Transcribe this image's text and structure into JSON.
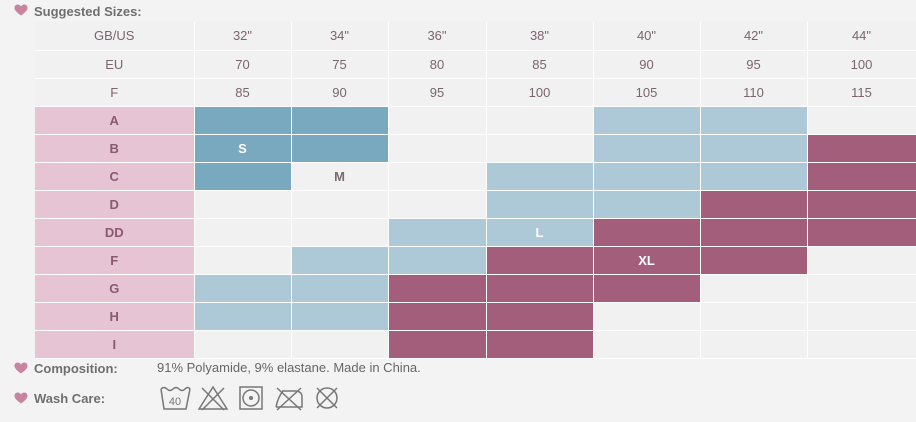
{
  "suggested_label": "Suggested Sizes:",
  "composition_label": "Composition:",
  "composition_text": "91% Polyamide, 9% elastane. Made in China.",
  "wash_label": "Wash Care:",
  "colors": {
    "small": "#79a9be",
    "large": "#adc8d6",
    "xlarge": "#a35e7b",
    "cup": "#e6c4d4",
    "heart": "#c8849f"
  },
  "header_rows": [
    {
      "label": "GB/US",
      "values": [
        "32\"",
        "34\"",
        "36\"",
        "38\"",
        "40\"",
        "42\"",
        "44\""
      ]
    },
    {
      "label": "EU",
      "values": [
        "70",
        "75",
        "80",
        "85",
        "90",
        "95",
        "100"
      ]
    },
    {
      "label": "F",
      "values": [
        "85",
        "90",
        "95",
        "100",
        "105",
        "110",
        "115"
      ]
    }
  ],
  "cup_rows": [
    {
      "cup": "A",
      "cells": [
        {
          "size": "small",
          "text": ""
        },
        {
          "size": "small",
          "text": ""
        },
        {
          "size": "",
          "text": ""
        },
        {
          "size": "",
          "text": ""
        },
        {
          "size": "large",
          "text": ""
        },
        {
          "size": "large",
          "text": ""
        },
        {
          "size": "",
          "text": ""
        }
      ]
    },
    {
      "cup": "B",
      "cells": [
        {
          "size": "small",
          "text": "S"
        },
        {
          "size": "small",
          "text": ""
        },
        {
          "size": "",
          "text": ""
        },
        {
          "size": "",
          "text": ""
        },
        {
          "size": "large",
          "text": ""
        },
        {
          "size": "large",
          "text": ""
        },
        {
          "size": "xlarge",
          "text": ""
        }
      ]
    },
    {
      "cup": "C",
      "cells": [
        {
          "size": "small",
          "text": ""
        },
        {
          "size": "",
          "text": "M"
        },
        {
          "size": "",
          "text": ""
        },
        {
          "size": "large",
          "text": ""
        },
        {
          "size": "large",
          "text": ""
        },
        {
          "size": "large",
          "text": ""
        },
        {
          "size": "xlarge",
          "text": ""
        }
      ]
    },
    {
      "cup": "D",
      "cells": [
        {
          "size": "",
          "text": ""
        },
        {
          "size": "",
          "text": ""
        },
        {
          "size": "",
          "text": ""
        },
        {
          "size": "large",
          "text": ""
        },
        {
          "size": "large",
          "text": ""
        },
        {
          "size": "xlarge",
          "text": ""
        },
        {
          "size": "xlarge",
          "text": ""
        }
      ]
    },
    {
      "cup": "DD",
      "cells": [
        {
          "size": "",
          "text": ""
        },
        {
          "size": "",
          "text": ""
        },
        {
          "size": "large",
          "text": ""
        },
        {
          "size": "large",
          "text": "L"
        },
        {
          "size": "xlarge",
          "text": ""
        },
        {
          "size": "xlarge",
          "text": ""
        },
        {
          "size": "xlarge",
          "text": ""
        }
      ]
    },
    {
      "cup": "F",
      "cells": [
        {
          "size": "",
          "text": ""
        },
        {
          "size": "large",
          "text": ""
        },
        {
          "size": "large",
          "text": ""
        },
        {
          "size": "xlarge",
          "text": ""
        },
        {
          "size": "xlarge",
          "text": "XL"
        },
        {
          "size": "xlarge",
          "text": ""
        },
        {
          "size": "",
          "text": ""
        }
      ]
    },
    {
      "cup": "G",
      "cells": [
        {
          "size": "large",
          "text": ""
        },
        {
          "size": "large",
          "text": ""
        },
        {
          "size": "xlarge",
          "text": ""
        },
        {
          "size": "xlarge",
          "text": ""
        },
        {
          "size": "xlarge",
          "text": ""
        },
        {
          "size": "",
          "text": ""
        },
        {
          "size": "",
          "text": ""
        }
      ]
    },
    {
      "cup": "H",
      "cells": [
        {
          "size": "large",
          "text": ""
        },
        {
          "size": "large",
          "text": ""
        },
        {
          "size": "xlarge",
          "text": ""
        },
        {
          "size": "xlarge",
          "text": ""
        },
        {
          "size": "",
          "text": ""
        },
        {
          "size": "",
          "text": ""
        },
        {
          "size": "",
          "text": ""
        }
      ]
    },
    {
      "cup": "I",
      "cells": [
        {
          "size": "",
          "text": ""
        },
        {
          "size": "",
          "text": ""
        },
        {
          "size": "xlarge",
          "text": ""
        },
        {
          "size": "xlarge",
          "text": ""
        },
        {
          "size": "",
          "text": ""
        },
        {
          "size": "",
          "text": ""
        },
        {
          "size": "",
          "text": ""
        }
      ]
    }
  ],
  "wash_icons": [
    {
      "name": "wash-40-icon",
      "text": "40"
    },
    {
      "name": "no-bleach-icon"
    },
    {
      "name": "tumble-dry-icon"
    },
    {
      "name": "no-iron-icon"
    },
    {
      "name": "no-dry-clean-icon"
    }
  ]
}
